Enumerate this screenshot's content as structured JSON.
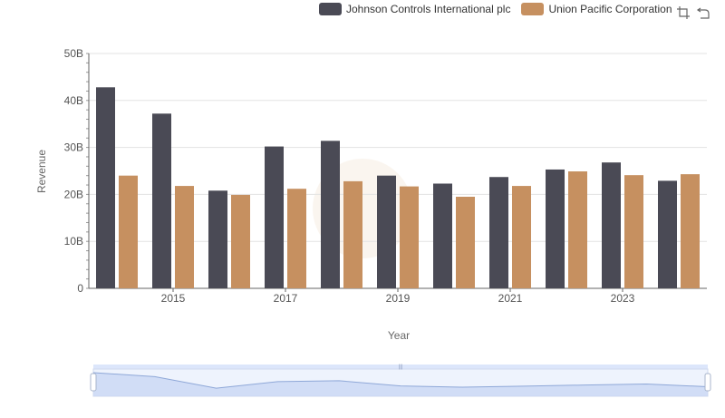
{
  "chart_data": {
    "type": "bar",
    "x": [
      2014,
      2015,
      2016,
      2017,
      2018,
      2019,
      2020,
      2021,
      2022,
      2023,
      2024
    ],
    "x_tick_labels": [
      "2015",
      "2017",
      "2019",
      "2021",
      "2023"
    ],
    "y_tick_labels": [
      "0",
      "10B",
      "20B",
      "30B",
      "40B",
      "50B"
    ],
    "ylim": [
      0,
      50
    ],
    "y_unit": "B",
    "xlabel": "Year",
    "ylabel": "Revenue",
    "legend_position": "top-right",
    "grid": true,
    "series": [
      {
        "name": "Johnson Controls International plc",
        "color": "#4a4a55",
        "values": [
          42.8,
          37.2,
          20.8,
          30.2,
          31.4,
          24.0,
          22.3,
          23.7,
          25.3,
          26.8,
          22.9
        ]
      },
      {
        "name": "Union Pacific Corporation",
        "color": "#c69060",
        "values": [
          24.0,
          21.8,
          19.9,
          21.2,
          22.8,
          21.7,
          19.5,
          21.8,
          24.9,
          24.1,
          24.3
        ]
      }
    ]
  },
  "data_zoom": {
    "start_percent": 0,
    "end_percent": 100
  },
  "toolbox": {
    "icons": [
      "zoom-icon",
      "reset-zoom-icon"
    ]
  }
}
